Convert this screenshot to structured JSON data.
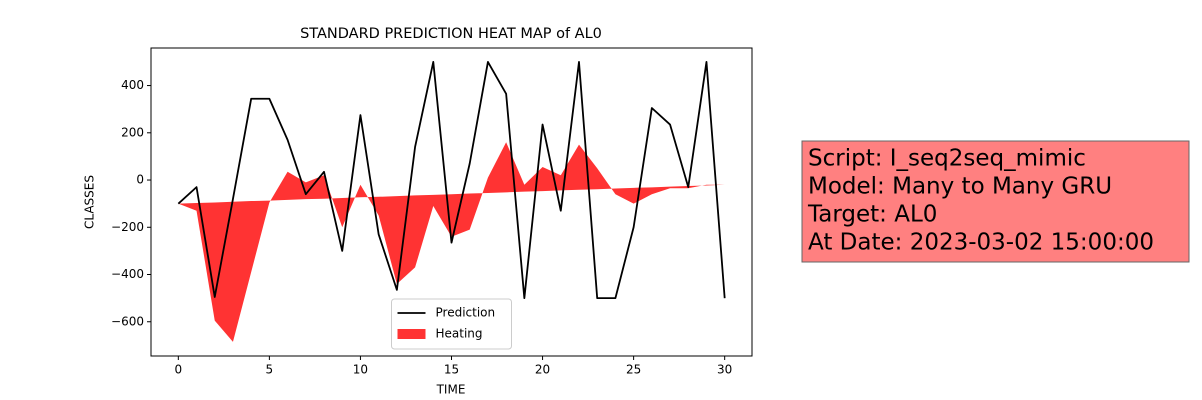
{
  "chart_data": {
    "type": "line",
    "title": "STANDARD PREDICTION HEAT MAP of AL0",
    "xlabel": "TIME",
    "ylabel": "CLASSES",
    "x": [
      0,
      1,
      2,
      3,
      4,
      5,
      6,
      7,
      8,
      9,
      10,
      11,
      12,
      13,
      14,
      15,
      16,
      17,
      18,
      19,
      20,
      21,
      22,
      23,
      24,
      25,
      26,
      27,
      28,
      29,
      30
    ],
    "series": [
      {
        "name": "Prediction",
        "color": "#000000",
        "kind": "line",
        "values": [
          -100,
          -30,
          -495,
          -80,
          344,
          344,
          170,
          -60,
          35,
          -300,
          275,
          -230,
          -465,
          140,
          500,
          -265,
          70,
          500,
          365,
          -500,
          235,
          -130,
          500,
          -500,
          -500,
          -200,
          305,
          235,
          -30,
          500,
          -500
        ]
      },
      {
        "name": "Heating",
        "color": "#ff0000",
        "kind": "fill",
        "values": [
          -100,
          -130,
          -595,
          -685,
          -390,
          -95,
          35,
          -10,
          20,
          -200,
          -20,
          -150,
          -440,
          -370,
          -110,
          -240,
          -210,
          10,
          160,
          -20,
          55,
          20,
          150,
          50,
          -60,
          -100,
          -60,
          -35,
          -35,
          -20,
          -20
        ],
        "base": [
          -100,
          -97,
          -95,
          -92,
          -89,
          -87,
          -84,
          -81,
          -79,
          -76,
          -73,
          -71,
          -68,
          -65,
          -63,
          -60,
          -57,
          -55,
          -52,
          -49,
          -47,
          -44,
          -41,
          -39,
          -36,
          -33,
          -31,
          -28,
          -25,
          -23,
          -20
        ]
      }
    ],
    "xlim": [
      -1.5,
      31.5
    ],
    "xticks": [
      0,
      5,
      10,
      15,
      20,
      25,
      30
    ],
    "ylim": [
      -745,
      559
    ],
    "yticks": [
      {
        "value": -600,
        "label": "−600"
      },
      {
        "value": -400,
        "label": "−400"
      },
      {
        "value": -200,
        "label": "−200"
      },
      0,
      200,
      400
    ],
    "legend": "lower center",
    "info_box": {
      "color": "#ff8080",
      "lines": [
        "Script: I_seq2seq_mimic",
        "Model: Many to Many GRU",
        "Target: AL0",
        "At Date: 2023-03-02 15:00:00"
      ]
    }
  }
}
